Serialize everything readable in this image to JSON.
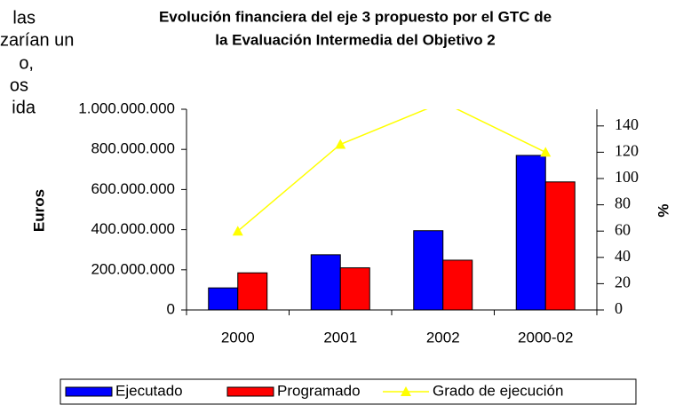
{
  "fragment_text": [
    "las",
    "zarían  un",
    "o,",
    "os",
    "ida"
  ],
  "chart_data": {
    "type": "bar-line",
    "title": [
      "Evolución financiera del eje 3 propuesto por el GTC de",
      "la Evaluación Intermedia del Objetivo 2"
    ],
    "y_label": "Euros",
    "y2_label": "%",
    "categories": [
      "2000",
      "2001",
      "2002",
      "2000-02"
    ],
    "series": [
      {
        "name": "Ejecutado",
        "type": "bar",
        "color": "#0000ff",
        "values": [
          110000000,
          275000000,
          395000000,
          770000000
        ]
      },
      {
        "name": "Programado",
        "type": "bar",
        "color": "#ff0000",
        "values": [
          185000000,
          210000000,
          248000000,
          638000000
        ]
      },
      {
        "name": "Grado de ejecución",
        "type": "line",
        "axis": "y2",
        "color": "#ffff00",
        "values": [
          60,
          126,
          158,
          120
        ]
      }
    ],
    "ylim": [
      0,
      1000000000
    ],
    "yticks": [
      0,
      {
        "value": 200000000,
        "label": "200.000.000"
      },
      {
        "value": 400000000,
        "label": "400.000.000"
      },
      {
        "value": 600000000,
        "label": "600.000.000"
      },
      {
        "value": 800000000,
        "label": "800.000.000"
      },
      {
        "value": 1000000000,
        "label": "1.000.000.000"
      }
    ],
    "y2lim": [
      0,
      152.7
    ],
    "y2ticks": [
      0,
      20,
      40,
      60,
      80,
      100,
      120,
      140
    ],
    "legend": "bottom"
  }
}
